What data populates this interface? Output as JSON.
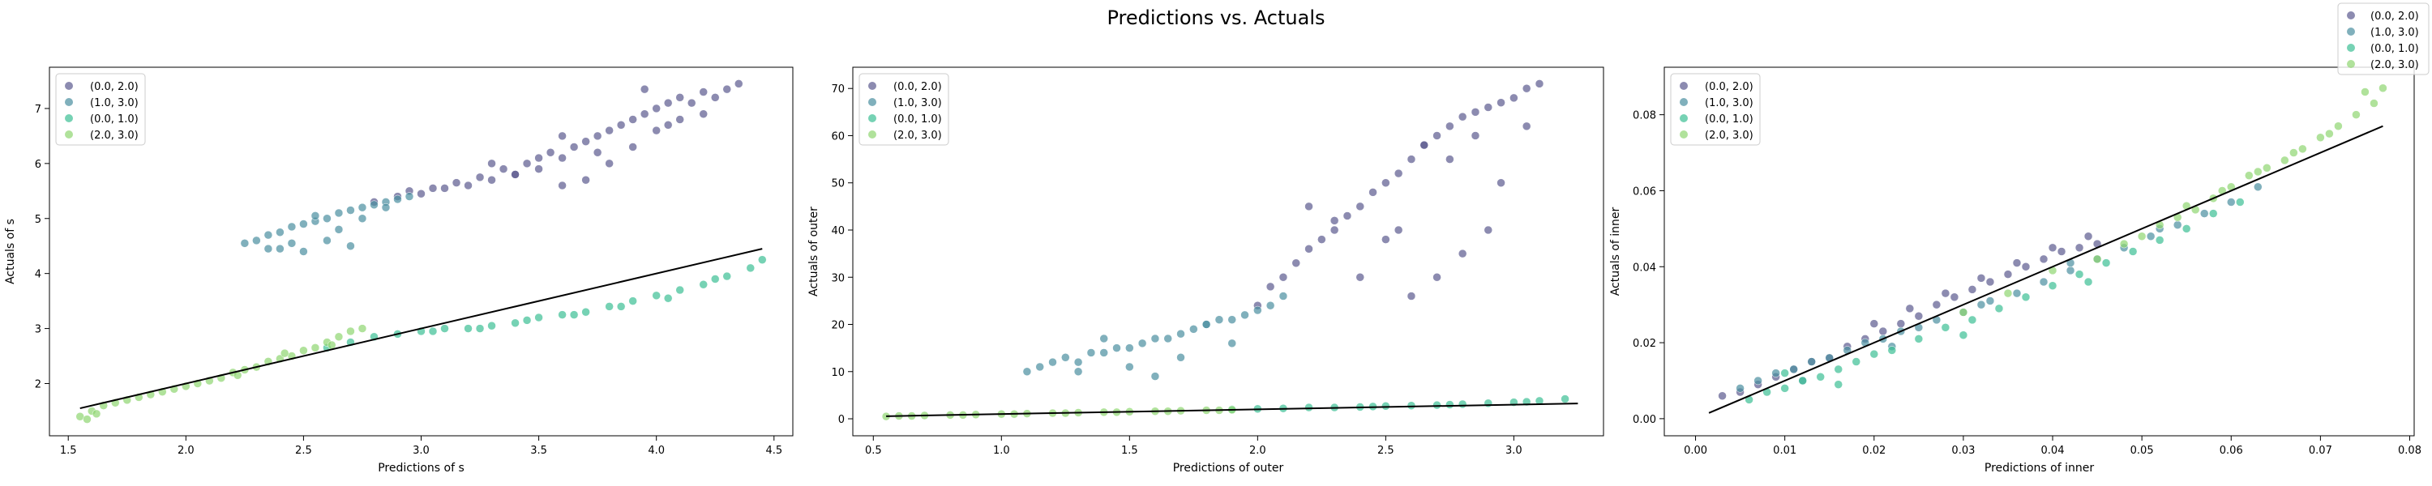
{
  "figure": {
    "title": "Predictions vs. Actuals"
  },
  "figure_legend": {
    "placement": "top-right",
    "entries": [
      "(0.0, 2.0)",
      "(1.0, 3.0)",
      "(0.0, 1.0)",
      "(2.0, 3.0)"
    ]
  },
  "series_colors": [
    "#5b5a8f",
    "#4a8fa0",
    "#3cbf94",
    "#8fd670"
  ],
  "chart_data": [
    {
      "type": "scatter",
      "title": "",
      "xlabel": "Predictions of s",
      "ylabel": "Actuals of s",
      "xlim": [
        1.42,
        4.58
      ],
      "ylim": [
        1.05,
        7.75
      ],
      "xticks": [
        "1.5",
        "2.0",
        "2.5",
        "3.0",
        "3.5",
        "4.0",
        "4.5"
      ],
      "yticks": [
        "2",
        "3",
        "4",
        "5",
        "6",
        "7"
      ],
      "grid": false,
      "legend": {
        "placement": "top-left",
        "entries": [
          "(0.0, 2.0)",
          "(1.0, 3.0)",
          "(0.0, 1.0)",
          "(2.0, 3.0)"
        ]
      },
      "reference_line": {
        "x": [
          1.55,
          4.45
        ],
        "y": [
          1.55,
          4.45
        ]
      },
      "series": [
        {
          "name": "(0.0, 2.0)",
          "x": [
            2.8,
            2.9,
            3.0,
            3.1,
            3.2,
            3.3,
            3.35,
            3.4,
            3.45,
            3.5,
            3.55,
            3.6,
            3.65,
            3.7,
            3.75,
            3.8,
            3.85,
            3.9,
            3.95,
            4.0,
            4.05,
            4.1,
            4.15,
            4.2,
            4.25,
            4.3,
            4.35,
            3.5,
            3.6,
            3.7,
            3.8,
            3.9,
            4.0,
            4.1,
            3.3,
            3.4,
            3.6,
            3.75,
            3.95,
            4.05,
            4.2,
            2.95,
            3.05,
            3.15,
            3.25
          ],
          "y": [
            5.3,
            5.4,
            5.45,
            5.55,
            5.6,
            5.7,
            5.9,
            5.8,
            6.0,
            6.1,
            6.2,
            6.1,
            6.3,
            6.4,
            6.5,
            6.6,
            6.7,
            6.8,
            6.9,
            7.0,
            7.1,
            7.2,
            7.1,
            7.3,
            7.2,
            7.35,
            7.45,
            5.9,
            5.6,
            5.7,
            6.0,
            6.3,
            6.6,
            6.8,
            6.0,
            5.8,
            6.5,
            6.2,
            7.35,
            6.7,
            6.9,
            5.5,
            5.55,
            5.65,
            5.75
          ]
        },
        {
          "name": "(1.0, 3.0)",
          "x": [
            2.25,
            2.3,
            2.35,
            2.4,
            2.45,
            2.5,
            2.55,
            2.6,
            2.65,
            2.7,
            2.75,
            2.8,
            2.85,
            2.9,
            2.95,
            2.4,
            2.5,
            2.6,
            2.7,
            2.55,
            2.65,
            2.75,
            2.45,
            2.35,
            2.85
          ],
          "y": [
            4.55,
            4.6,
            4.7,
            4.75,
            4.85,
            4.9,
            4.95,
            5.0,
            5.1,
            5.15,
            5.2,
            5.25,
            5.3,
            5.35,
            5.4,
            4.45,
            4.4,
            4.6,
            4.5,
            5.05,
            4.8,
            5.0,
            4.55,
            4.45,
            5.2
          ]
        },
        {
          "name": "(0.0, 1.0)",
          "x": [
            2.8,
            2.9,
            3.0,
            3.1,
            3.2,
            3.3,
            3.4,
            3.5,
            3.6,
            3.7,
            3.8,
            3.9,
            4.0,
            4.1,
            4.2,
            4.3,
            4.4,
            4.45,
            3.05,
            3.25,
            3.45,
            3.65,
            3.85,
            4.05,
            4.25,
            2.6,
            2.7
          ],
          "y": [
            2.85,
            2.9,
            2.95,
            3.0,
            3.0,
            3.05,
            3.1,
            3.2,
            3.25,
            3.3,
            3.4,
            3.5,
            3.6,
            3.7,
            3.8,
            3.95,
            4.1,
            4.25,
            2.95,
            3.0,
            3.15,
            3.25,
            3.4,
            3.55,
            3.9,
            2.65,
            2.75
          ]
        },
        {
          "name": "(2.0, 3.0)",
          "x": [
            1.55,
            1.6,
            1.65,
            1.7,
            1.75,
            1.8,
            1.85,
            1.9,
            1.95,
            2.0,
            2.05,
            2.1,
            2.15,
            2.2,
            2.25,
            2.3,
            2.35,
            2.4,
            2.45,
            2.5,
            2.55,
            2.6,
            2.65,
            2.7,
            2.75,
            1.58,
            1.62,
            2.22,
            2.42,
            2.62
          ],
          "y": [
            1.4,
            1.5,
            1.6,
            1.65,
            1.7,
            1.75,
            1.8,
            1.85,
            1.9,
            1.95,
            2.0,
            2.05,
            2.1,
            2.2,
            2.25,
            2.3,
            2.4,
            2.45,
            2.5,
            2.6,
            2.65,
            2.75,
            2.85,
            2.95,
            3.0,
            1.35,
            1.45,
            2.15,
            2.55,
            2.7
          ]
        }
      ]
    },
    {
      "type": "scatter",
      "title": "",
      "xlabel": "Predictions of outer",
      "ylabel": "Actuals of outer",
      "xlim": [
        0.42,
        3.35
      ],
      "ylim": [
        -3.6,
        74.5
      ],
      "xticks": [
        "0.5",
        "1.0",
        "1.5",
        "2.0",
        "2.5",
        "3.0"
      ],
      "yticks": [
        "0",
        "10",
        "20",
        "30",
        "40",
        "50",
        "60",
        "70"
      ],
      "grid": false,
      "legend": {
        "placement": "top-left",
        "entries": [
          "(0.0, 2.0)",
          "(1.0, 3.0)",
          "(0.0, 1.0)",
          "(2.0, 3.0)"
        ]
      },
      "reference_line": {
        "x": [
          0.55,
          3.25
        ],
        "y": [
          0.55,
          3.25
        ]
      },
      "series": [
        {
          "name": "(0.0, 2.0)",
          "x": [
            2.0,
            2.05,
            2.1,
            2.15,
            2.2,
            2.25,
            2.3,
            2.35,
            2.4,
            2.45,
            2.5,
            2.55,
            2.6,
            2.65,
            2.7,
            2.75,
            2.8,
            2.85,
            2.9,
            2.95,
            3.0,
            3.05,
            3.1,
            2.6,
            2.7,
            2.8,
            2.9,
            2.4,
            2.5,
            2.3,
            2.2,
            2.75,
            2.85,
            2.95,
            3.05,
            2.55,
            2.65
          ],
          "y": [
            24,
            28,
            30,
            33,
            36,
            38,
            40,
            43,
            45,
            48,
            50,
            52,
            55,
            58,
            60,
            62,
            64,
            65,
            66,
            67,
            68,
            70,
            71,
            26,
            30,
            35,
            40,
            30,
            38,
            42,
            45,
            55,
            60,
            50,
            62,
            40,
            58
          ]
        },
        {
          "name": "(1.0, 3.0)",
          "x": [
            1.1,
            1.15,
            1.2,
            1.25,
            1.3,
            1.35,
            1.4,
            1.45,
            1.5,
            1.55,
            1.6,
            1.65,
            1.7,
            1.75,
            1.8,
            1.85,
            1.9,
            1.95,
            2.0,
            2.05,
            1.3,
            1.5,
            1.7,
            1.9,
            1.4,
            1.6,
            1.8,
            2.1
          ],
          "y": [
            10,
            11,
            12,
            13,
            12,
            14,
            14,
            15,
            15,
            16,
            17,
            17,
            18,
            19,
            20,
            21,
            21,
            22,
            23,
            24,
            10,
            11,
            13,
            16,
            17,
            9,
            20,
            26
          ]
        },
        {
          "name": "(0.0, 1.0)",
          "x": [
            1.9,
            2.0,
            2.1,
            2.2,
            2.3,
            2.4,
            2.5,
            2.6,
            2.7,
            2.8,
            2.9,
            3.0,
            3.1,
            3.2,
            2.45,
            2.75,
            3.05
          ],
          "y": [
            2.0,
            2.1,
            2.2,
            2.4,
            2.4,
            2.5,
            2.7,
            2.8,
            2.9,
            3.1,
            3.3,
            3.5,
            3.8,
            4.2,
            2.6,
            3.0,
            3.6
          ]
        },
        {
          "name": "(2.0, 3.0)",
          "x": [
            0.55,
            0.6,
            0.7,
            0.8,
            0.9,
            1.0,
            1.1,
            1.2,
            1.3,
            1.4,
            1.5,
            1.6,
            1.7,
            1.8,
            1.9,
            0.65,
            0.85,
            1.05,
            1.25,
            1.45,
            1.65,
            1.85
          ],
          "y": [
            0.5,
            0.6,
            0.7,
            0.8,
            0.9,
            1.0,
            1.1,
            1.2,
            1.3,
            1.4,
            1.5,
            1.6,
            1.7,
            1.8,
            1.9,
            0.6,
            0.8,
            1.0,
            1.2,
            1.4,
            1.6,
            1.8
          ]
        }
      ]
    },
    {
      "type": "scatter",
      "title": "",
      "xlabel": "Predictions of inner",
      "ylabel": "Actuals of inner",
      "xlim": [
        -0.0035,
        0.0805
      ],
      "ylim": [
        -0.0045,
        0.0925
      ],
      "xticks": [
        "0.00",
        "0.01",
        "0.02",
        "0.03",
        "0.04",
        "0.05",
        "0.06",
        "0.07",
        "0.08"
      ],
      "yticks": [
        "0.00",
        "0.02",
        "0.04",
        "0.06",
        "0.08"
      ],
      "grid": false,
      "legend": {
        "placement": "top-left",
        "entries": [
          "(0.0, 2.0)",
          "(1.0, 3.0)",
          "(0.0, 1.0)",
          "(2.0, 3.0)"
        ]
      },
      "reference_line": {
        "x": [
          0.0015,
          0.077
        ],
        "y": [
          0.0015,
          0.077
        ]
      },
      "series": [
        {
          "name": "(0.0, 2.0)",
          "x": [
            0.003,
            0.005,
            0.007,
            0.009,
            0.011,
            0.013,
            0.015,
            0.017,
            0.019,
            0.021,
            0.023,
            0.025,
            0.027,
            0.029,
            0.031,
            0.033,
            0.035,
            0.037,
            0.039,
            0.041,
            0.043,
            0.045,
            0.02,
            0.024,
            0.028,
            0.032,
            0.036,
            0.04,
            0.044
          ],
          "y": [
            0.006,
            0.007,
            0.009,
            0.011,
            0.013,
            0.015,
            0.016,
            0.019,
            0.021,
            0.023,
            0.025,
            0.027,
            0.03,
            0.032,
            0.034,
            0.036,
            0.038,
            0.04,
            0.042,
            0.044,
            0.045,
            0.046,
            0.025,
            0.029,
            0.033,
            0.037,
            0.041,
            0.045,
            0.048
          ]
        },
        {
          "name": "(1.0, 3.0)",
          "x": [
            0.005,
            0.007,
            0.009,
            0.011,
            0.013,
            0.015,
            0.017,
            0.019,
            0.021,
            0.023,
            0.025,
            0.027,
            0.03,
            0.033,
            0.036,
            0.039,
            0.042,
            0.045,
            0.048,
            0.051,
            0.054,
            0.057,
            0.06,
            0.063,
            0.012,
            0.022,
            0.032,
            0.042,
            0.052
          ],
          "y": [
            0.008,
            0.01,
            0.012,
            0.013,
            0.015,
            0.016,
            0.018,
            0.02,
            0.021,
            0.023,
            0.024,
            0.026,
            0.028,
            0.031,
            0.033,
            0.036,
            0.039,
            0.042,
            0.045,
            0.048,
            0.051,
            0.054,
            0.057,
            0.061,
            0.01,
            0.019,
            0.03,
            0.041,
            0.05
          ]
        },
        {
          "name": "(0.0, 1.0)",
          "x": [
            0.006,
            0.008,
            0.01,
            0.012,
            0.014,
            0.016,
            0.018,
            0.02,
            0.022,
            0.025,
            0.028,
            0.031,
            0.034,
            0.037,
            0.04,
            0.043,
            0.046,
            0.049,
            0.052,
            0.055,
            0.058,
            0.061,
            0.01,
            0.016,
            0.03,
            0.044
          ],
          "y": [
            0.005,
            0.007,
            0.008,
            0.01,
            0.011,
            0.013,
            0.015,
            0.017,
            0.018,
            0.021,
            0.024,
            0.026,
            0.029,
            0.032,
            0.035,
            0.038,
            0.041,
            0.044,
            0.047,
            0.05,
            0.054,
            0.057,
            0.012,
            0.009,
            0.022,
            0.036
          ]
        },
        {
          "name": "(2.0, 3.0)",
          "x": [
            0.045,
            0.048,
            0.05,
            0.052,
            0.054,
            0.056,
            0.058,
            0.06,
            0.062,
            0.064,
            0.066,
            0.068,
            0.07,
            0.072,
            0.074,
            0.076,
            0.077,
            0.055,
            0.059,
            0.063,
            0.067,
            0.071,
            0.075,
            0.03,
            0.035,
            0.04
          ],
          "y": [
            0.042,
            0.046,
            0.048,
            0.051,
            0.053,
            0.055,
            0.058,
            0.061,
            0.064,
            0.066,
            0.068,
            0.071,
            0.074,
            0.077,
            0.08,
            0.083,
            0.087,
            0.056,
            0.06,
            0.065,
            0.07,
            0.075,
            0.086,
            0.028,
            0.033,
            0.039
          ]
        }
      ]
    }
  ]
}
